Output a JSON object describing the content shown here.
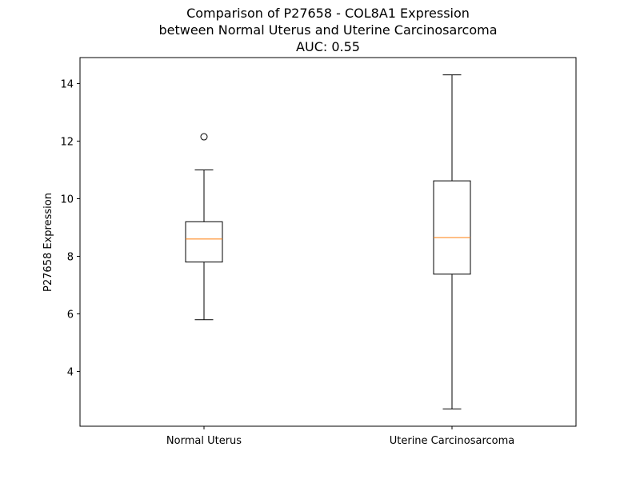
{
  "chart_data": {
    "type": "box",
    "title_lines": [
      "Comparison of P27658 - COL8A1 Expression",
      "between Normal Uterus and Uterine Carcinosarcoma",
      "AUC: 0.55"
    ],
    "xlabel": "",
    "ylabel": "P27658 Expression",
    "ylim": [
      2.1,
      14.9
    ],
    "yticks": [
      4,
      6,
      8,
      10,
      12,
      14
    ],
    "grid": false,
    "colors": {
      "box": "#000000",
      "median": "#ff7f0e",
      "flier": "#000000"
    },
    "categories": [
      "Normal Uterus",
      "Uterine Carcinosarcoma"
    ],
    "boxes": [
      {
        "category": "Normal Uterus",
        "whisker_low": 5.8,
        "q1": 7.8,
        "median": 8.6,
        "q3": 9.2,
        "whisker_high": 11.0,
        "fliers": [
          12.15
        ]
      },
      {
        "category": "Uterine Carcinosarcoma",
        "whisker_low": 2.7,
        "q1": 7.38,
        "median": 8.65,
        "q3": 10.62,
        "whisker_high": 14.3,
        "fliers": []
      }
    ]
  }
}
